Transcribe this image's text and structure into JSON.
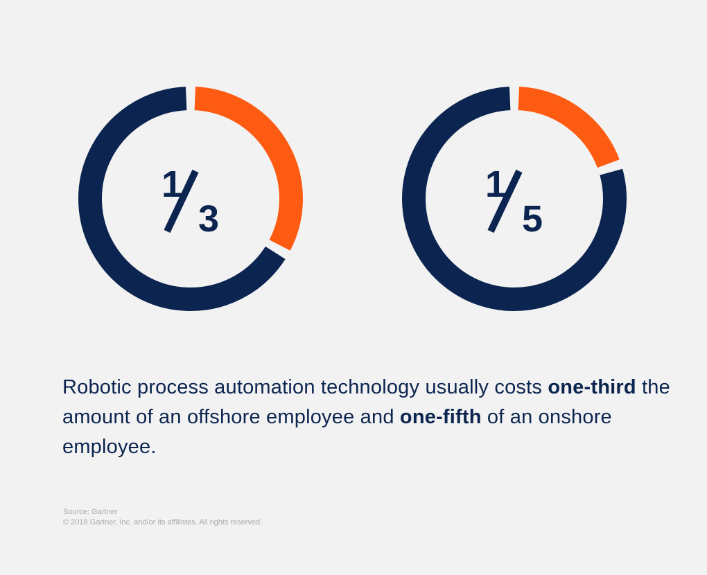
{
  "chart_data": [
    {
      "type": "pie",
      "center_label_num": "1",
      "center_label_den": "3",
      "values": [
        1,
        2
      ],
      "fraction_highlighted": 0.3333,
      "colors": [
        "#fd5a12",
        "#0b2550"
      ]
    },
    {
      "type": "pie",
      "center_label_num": "1",
      "center_label_den": "5",
      "values": [
        1,
        4
      ],
      "fraction_highlighted": 0.2,
      "colors": [
        "#fd5a12",
        "#0b2550"
      ]
    }
  ],
  "caption": {
    "part1": "Robotic process automation technology usually costs ",
    "bold1": "one-third",
    "part2": " the amount of an offshore employee and ",
    "bold2": "one-fifth",
    "part3": " of an onshore employee."
  },
  "source": {
    "line1": "Source: Gartner",
    "line2": "© 2018 Gartner, Inc. and/or its affiliates. All rights reserved."
  },
  "colors": {
    "accent": "#fd5a12",
    "primary": "#0b2550",
    "background": "#f3f2f2"
  }
}
